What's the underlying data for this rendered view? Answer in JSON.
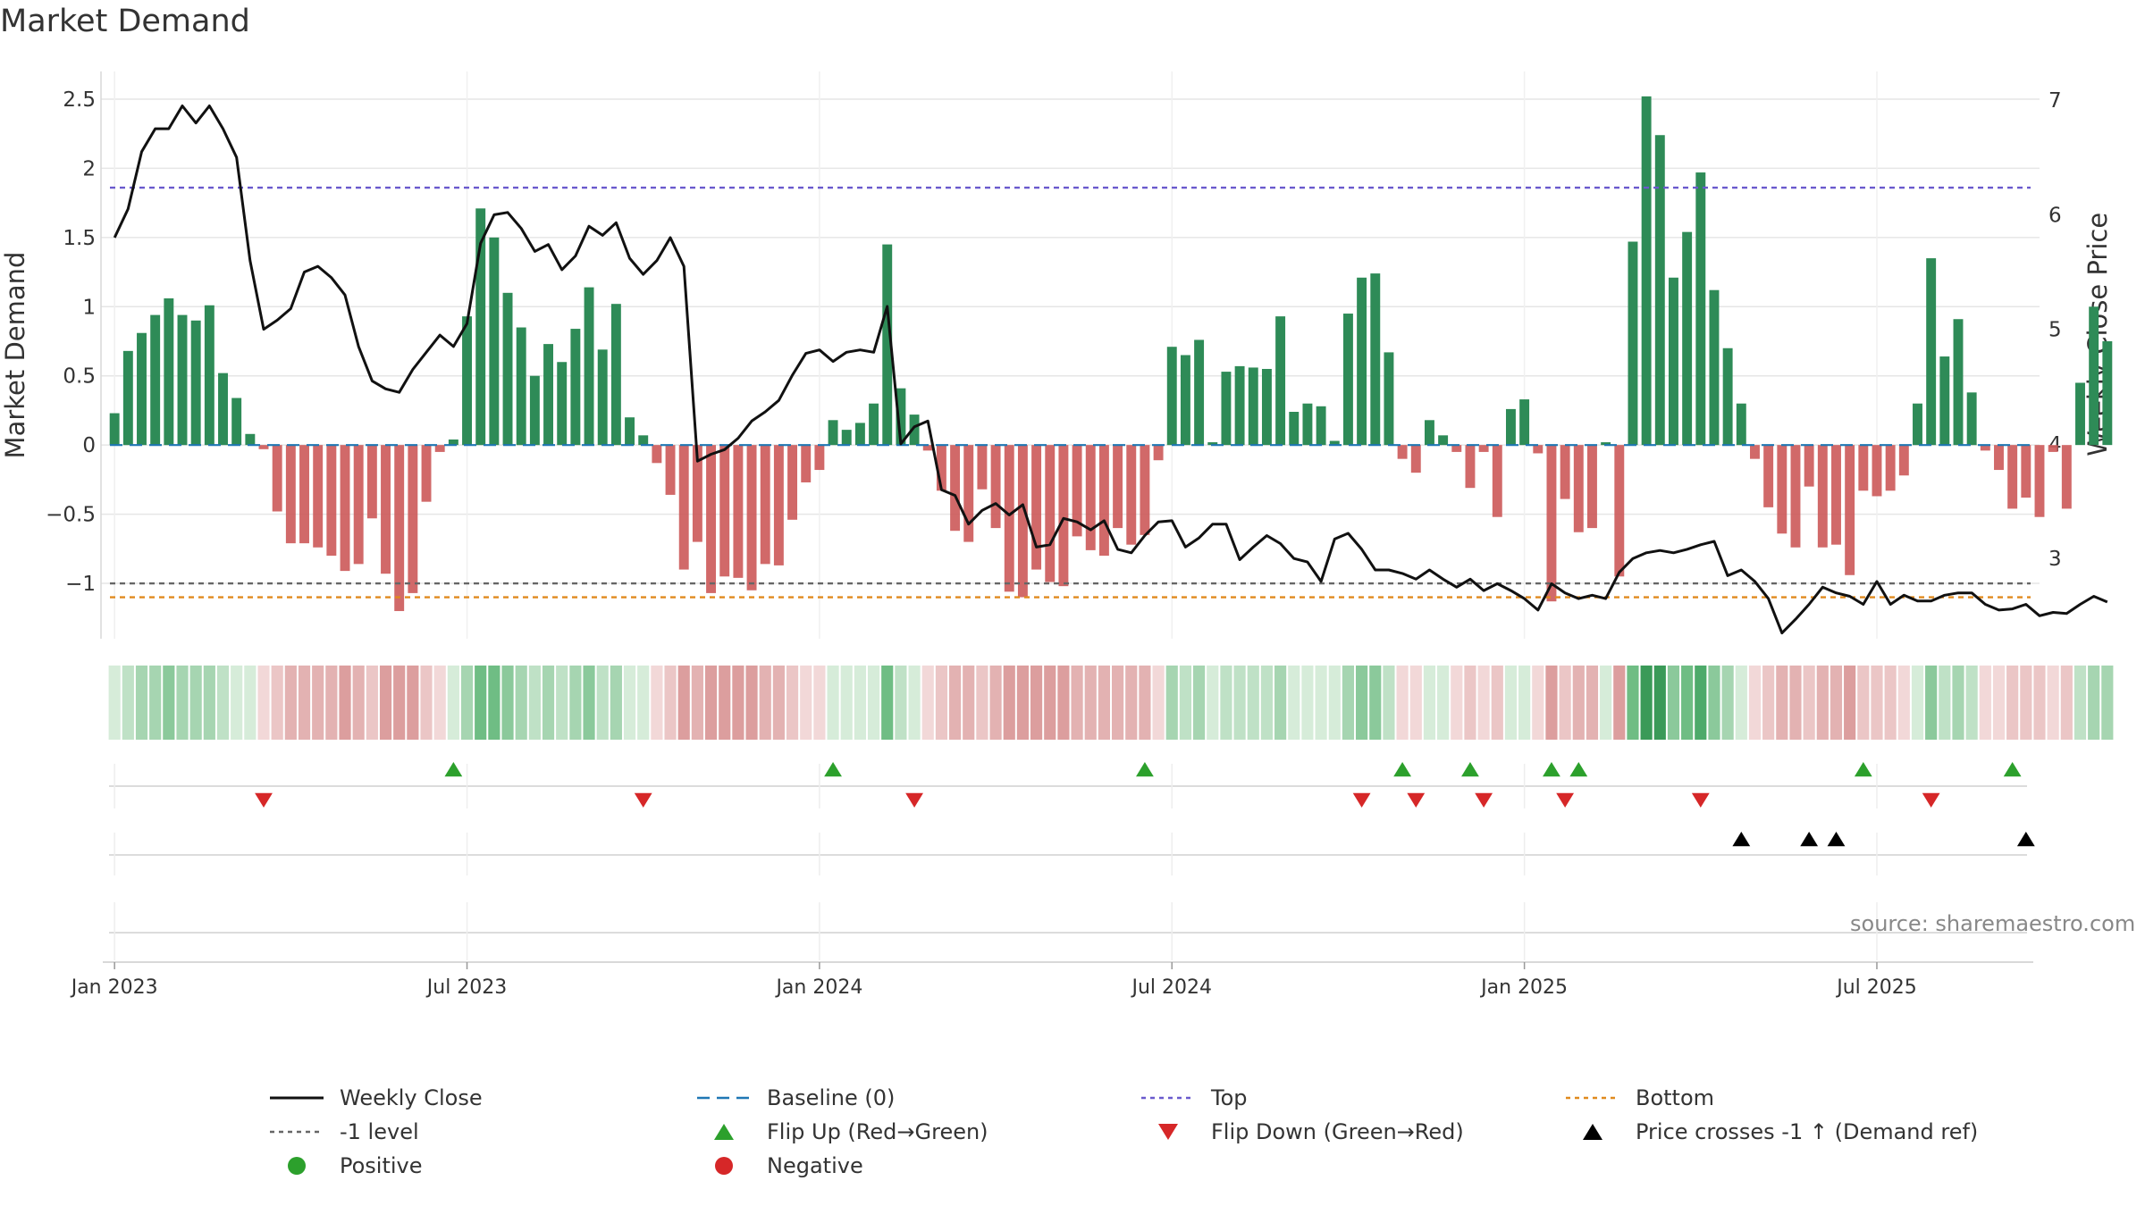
{
  "title": "Market Demand",
  "source_text": "source: sharemaestro.com",
  "colors": {
    "positive": "#2e8b57",
    "negative": "#cd5c5c",
    "close": "#111111",
    "baseline": "#1f77b4",
    "top": "#6a5acd",
    "bottom": "#e08a1e",
    "minus_one": "#666666",
    "flip_up": "#2ca02c",
    "flip_down": "#d62728",
    "price_cross": "#000000"
  },
  "chart_data": {
    "type": "bar",
    "title": "Market Demand",
    "ylabel": "Market Demand",
    "y2label": "Weekly Close Price",
    "ylim": [
      -1.4,
      2.7
    ],
    "y2lim": [
      2.3,
      7.25
    ],
    "y_ticks": [
      2.5,
      2,
      1.5,
      1,
      0.5,
      0,
      -0.5,
      -1
    ],
    "y_tick_labels": [
      "2.5",
      "2",
      "1.5",
      "1",
      "0.5",
      "0",
      "−0.5",
      "−1"
    ],
    "y2_ticks": [
      7,
      6,
      5,
      4,
      3
    ],
    "y2_tick_labels": [
      "7",
      "6",
      "5",
      "4",
      "3"
    ],
    "x_ticks": [
      0,
      26,
      52,
      78,
      104,
      130
    ],
    "x_tick_labels": [
      "Jan 2023",
      "Jul 2023",
      "Jan 2024",
      "Jul 2024",
      "Jan 2025",
      "Jul 2025"
    ],
    "x_range": [
      -1,
      142
    ],
    "levels": {
      "baseline": 0,
      "top": 1.86,
      "bottom": -1.1,
      "minus_one": -1.0
    },
    "demand": [
      0.23,
      0.68,
      0.81,
      0.94,
      1.06,
      0.94,
      0.9,
      1.01,
      0.52,
      0.34,
      0.08,
      -0.03,
      -0.48,
      -0.71,
      -0.71,
      -0.74,
      -0.8,
      -0.91,
      -0.86,
      -0.53,
      -0.93,
      -1.2,
      -1.07,
      -0.41,
      -0.05,
      0.04,
      0.93,
      1.71,
      1.5,
      1.1,
      0.85,
      0.5,
      0.73,
      0.6,
      0.84,
      1.14,
      0.69,
      1.02,
      0.2,
      0.07,
      -0.13,
      -0.36,
      -0.9,
      -0.7,
      -1.07,
      -0.95,
      -0.96,
      -1.05,
      -0.86,
      -0.87,
      -0.54,
      -0.27,
      -0.18,
      0.18,
      0.11,
      0.16,
      0.3,
      1.45,
      0.41,
      0.22,
      -0.04,
      -0.33,
      -0.62,
      -0.7,
      -0.32,
      -0.6,
      -1.06,
      -1.1,
      -0.9,
      -0.99,
      -1.02,
      -0.66,
      -0.76,
      -0.8,
      -0.6,
      -0.72,
      -0.65,
      -0.11,
      0.71,
      0.65,
      0.76,
      0.02,
      0.53,
      0.57,
      0.56,
      0.55,
      0.93,
      0.24,
      0.3,
      0.28,
      0.03,
      0.95,
      1.21,
      1.24,
      0.67,
      -0.1,
      -0.2,
      0.18,
      0.07,
      -0.05,
      -0.31,
      -0.05,
      -0.52,
      0.26,
      0.33,
      -0.06,
      -1.13,
      -0.39,
      -0.63,
      -0.6,
      0.02,
      -0.95,
      1.47,
      2.52,
      2.24,
      1.21,
      1.54,
      1.97,
      1.12,
      0.7,
      0.3,
      -0.1,
      -0.45,
      -0.64,
      -0.74,
      -0.3,
      -0.74,
      -0.72,
      -0.94,
      -0.33,
      -0.37,
      -0.33,
      -0.22,
      0.3,
      1.35,
      0.64,
      0.91,
      0.38,
      -0.04,
      -0.18,
      -0.46,
      -0.38,
      -0.52,
      -0.05,
      -0.46,
      0.45,
      1.0,
      0.75
    ],
    "close": [
      5.8,
      6.05,
      6.55,
      6.75,
      6.75,
      6.95,
      6.8,
      6.95,
      6.75,
      6.5,
      5.6,
      5.0,
      5.08,
      5.18,
      5.5,
      5.55,
      5.45,
      5.3,
      4.85,
      4.55,
      4.48,
      4.45,
      4.65,
      4.8,
      4.95,
      4.85,
      5.05,
      5.75,
      6.0,
      6.02,
      5.88,
      5.68,
      5.74,
      5.52,
      5.64,
      5.9,
      5.82,
      5.93,
      5.62,
      5.48,
      5.6,
      5.8,
      5.55,
      3.85,
      3.91,
      3.95,
      4.05,
      4.2,
      4.28,
      4.38,
      4.6,
      4.79,
      4.82,
      4.72,
      4.8,
      4.82,
      4.8,
      5.2,
      4.0,
      4.15,
      4.2,
      3.6,
      3.55,
      3.3,
      3.42,
      3.48,
      3.38,
      3.47,
      3.1,
      3.12,
      3.35,
      3.32,
      3.25,
      3.33,
      3.08,
      3.05,
      3.2,
      3.32,
      3.33,
      3.1,
      3.18,
      3.3,
      3.3,
      2.99,
      3.1,
      3.2,
      3.13,
      3.0,
      2.97,
      2.8,
      3.17,
      3.22,
      3.08,
      2.9,
      2.9,
      2.87,
      2.82,
      2.9,
      2.82,
      2.75,
      2.82,
      2.72,
      2.78,
      2.72,
      2.65,
      2.55,
      2.78,
      2.7,
      2.65,
      2.68,
      2.65,
      2.88,
      3.0,
      3.05,
      3.07,
      3.05,
      3.08,
      3.12,
      3.15,
      2.85,
      2.9,
      2.8,
      2.65,
      2.35,
      2.47,
      2.6,
      2.75,
      2.7,
      2.67,
      2.6,
      2.8,
      2.6,
      2.68,
      2.63,
      2.63,
      2.68,
      2.7,
      2.7,
      2.6,
      2.55,
      2.56,
      2.6,
      2.5,
      2.53,
      2.52,
      2.6,
      2.67,
      2.62
    ],
    "heat_ramp": [
      -1.2,
      -0.8,
      -0.4,
      0.0,
      0.4,
      0.8,
      1.2,
      1.8,
      2.5
    ],
    "flip_up": [
      25,
      53,
      76,
      95,
      100,
      106,
      108,
      129,
      140
    ],
    "flip_down": [
      11,
      39,
      59,
      92,
      96,
      101,
      107,
      117,
      134
    ],
    "price_cross_up": [
      120,
      125,
      127,
      141
    ],
    "series": [
      {
        "name": "Weekly Close",
        "kind": "line"
      },
      {
        "name": "Baseline (0)",
        "kind": "dashed"
      },
      {
        "name": "Top",
        "kind": "dotted"
      },
      {
        "name": "Bottom",
        "kind": "dotted"
      },
      {
        "name": "-1 level",
        "kind": "dotted"
      },
      {
        "name": "Flip Up (Red→Green)",
        "kind": "marker-up"
      },
      {
        "name": "Flip Down (Green→Red)",
        "kind": "marker-down"
      },
      {
        "name": "Price crosses -1 ↑ (Demand ref)",
        "kind": "marker-up"
      },
      {
        "name": "Positive",
        "kind": "dot"
      },
      {
        "name": "Negative",
        "kind": "dot"
      }
    ]
  },
  "legend": [
    {
      "label": "Weekly Close",
      "swatch": "line",
      "color_key": "close"
    },
    {
      "label": "Baseline (0)",
      "swatch": "dash",
      "color_key": "baseline"
    },
    {
      "label": "Top",
      "swatch": "dot",
      "color_key": "top"
    },
    {
      "label": "Bottom",
      "swatch": "dot",
      "color_key": "bottom"
    },
    {
      "label": "-1 level",
      "swatch": "dot",
      "color_key": "minus_one"
    },
    {
      "label": "Flip Up (Red→Green)",
      "swatch": "tri-up",
      "color_key": "flip_up"
    },
    {
      "label": "Flip Down (Green→Red)",
      "swatch": "tri-down",
      "color_key": "flip_down"
    },
    {
      "label": "Price crosses -1 ↑ (Demand ref)",
      "swatch": "tri-up",
      "color_key": "price_cross"
    },
    {
      "label": "Positive",
      "swatch": "circle",
      "color_key": "flip_up"
    },
    {
      "label": "Negative",
      "swatch": "circle",
      "color_key": "flip_down"
    }
  ]
}
